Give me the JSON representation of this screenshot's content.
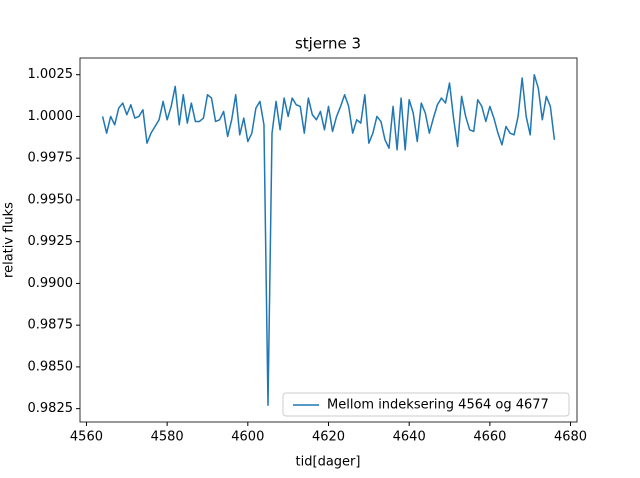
{
  "chart_data": {
    "type": "line",
    "title": "stjerne 3",
    "xlabel": "tid[dager]",
    "ylabel": "relativ fluks",
    "x": [
      4564,
      4565,
      4566,
      4567,
      4568,
      4569,
      4570,
      4571,
      4572,
      4573,
      4574,
      4575,
      4576,
      4577,
      4578,
      4579,
      4580,
      4581,
      4582,
      4583,
      4584,
      4585,
      4586,
      4587,
      4588,
      4589,
      4590,
      4591,
      4592,
      4593,
      4594,
      4595,
      4596,
      4597,
      4598,
      4599,
      4600,
      4601,
      4602,
      4603,
      4604,
      4605,
      4606,
      4607,
      4608,
      4609,
      4610,
      4611,
      4612,
      4613,
      4614,
      4615,
      4616,
      4617,
      4618,
      4619,
      4620,
      4621,
      4622,
      4623,
      4624,
      4625,
      4626,
      4627,
      4628,
      4629,
      4630,
      4631,
      4632,
      4633,
      4634,
      4635,
      4636,
      4637,
      4638,
      4639,
      4640,
      4641,
      4642,
      4643,
      4644,
      4645,
      4646,
      4647,
      4648,
      4649,
      4650,
      4651,
      4652,
      4653,
      4654,
      4655,
      4656,
      4657,
      4658,
      4659,
      4660,
      4661,
      4662,
      4663,
      4664,
      4665,
      4666,
      4667,
      4668,
      4669,
      4670,
      4671,
      4672,
      4673,
      4674,
      4675,
      4676
    ],
    "series": [
      {
        "name": "Mellom indeksering 4564 og 4677",
        "color": "#1f77b4",
        "values": [
          1.0,
          0.999,
          1.0,
          0.9995,
          1.0005,
          1.0008,
          1.0001,
          1.0007,
          0.9999,
          1.0,
          1.0004,
          0.9984,
          0.999,
          0.9994,
          0.9998,
          1.0009,
          0.9998,
          1.0006,
          1.0018,
          0.9995,
          1.0013,
          0.9996,
          1.0008,
          0.9997,
          0.9997,
          0.9999,
          1.0013,
          1.0011,
          0.9997,
          0.9998,
          1.0003,
          0.9988,
          0.9998,
          1.0013,
          0.9989,
          0.9999,
          0.9985,
          0.999,
          1.0005,
          1.0009,
          0.9995,
          0.9827,
          0.999,
          1.0009,
          0.9992,
          1.0011,
          1.0,
          1.0011,
          1.0007,
          1.0006,
          0.999,
          1.0011,
          1.0001,
          0.9998,
          1.0003,
          0.9992,
          1.0006,
          0.9991,
          1.0,
          1.0006,
          1.0013,
          1.0006,
          0.999,
          0.9998,
          0.9996,
          1.0013,
          0.9984,
          0.999,
          1.0,
          0.9997,
          0.9986,
          0.9981,
          1.0006,
          0.998,
          1.0011,
          0.998,
          1.001,
          1.0002,
          0.9985,
          1.0008,
          1.0002,
          0.999,
          0.9999,
          1.0007,
          1.0011,
          1.0008,
          1.002,
          0.9999,
          0.9982,
          1.0012,
          1.0,
          0.9992,
          0.9991,
          1.001,
          1.0006,
          0.9997,
          1.0006,
          0.9999,
          0.999,
          0.9983,
          0.9994,
          0.999,
          0.9989,
          1.0,
          1.0023,
          1.0,
          0.9989,
          1.0025,
          1.0017,
          0.9998,
          1.0012,
          1.0006,
          0.9986
        ]
      }
    ],
    "xlim": [
      4558.4,
      4681.6
    ],
    "ylim": [
      0.9817,
      1.0035
    ],
    "xticks": [
      4560,
      4580,
      4600,
      4620,
      4640,
      4660,
      4680
    ],
    "yticks": [
      {
        "value": 0.9825,
        "label": "0.9825"
      },
      {
        "value": 0.985,
        "label": "0.9850"
      },
      {
        "value": 0.9875,
        "label": "0.9875"
      },
      {
        "value": 0.99,
        "label": "0.9900"
      },
      {
        "value": 0.9925,
        "label": "0.9925"
      },
      {
        "value": 0.995,
        "label": "0.9950"
      },
      {
        "value": 0.9975,
        "label": "0.9975"
      },
      {
        "value": 1.0,
        "label": "1.0000"
      },
      {
        "value": 1.0025,
        "label": "1.0025"
      }
    ],
    "legend": "lower right",
    "grid": false
  }
}
